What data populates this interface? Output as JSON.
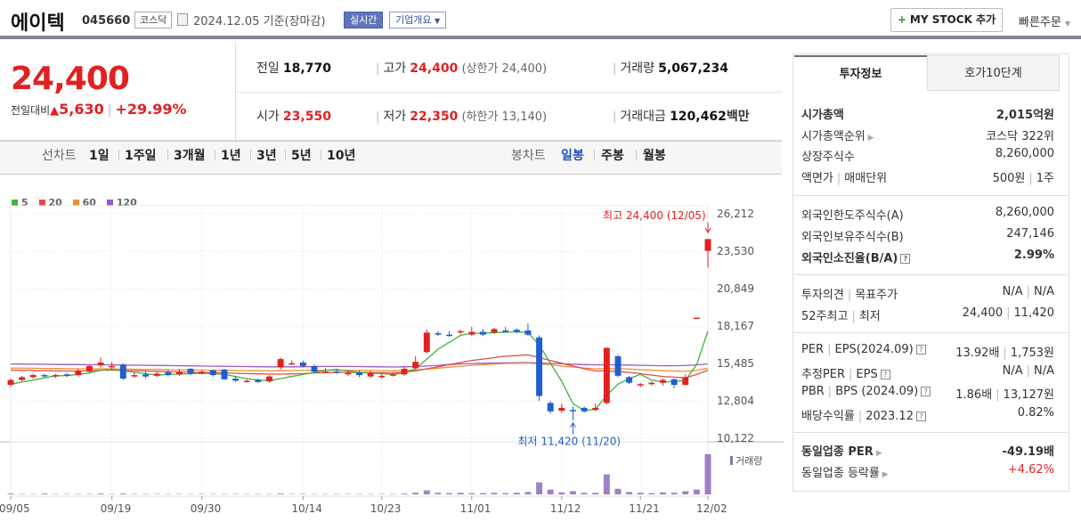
{
  "header": {
    "company": "에이텍",
    "code": "045660",
    "market": "코스닥",
    "date": "2024.12.05",
    "basis": "기준(장마감)",
    "realtime": "실시간",
    "overview": "기업개요",
    "overview_caret": "▼",
    "mystock": "MY STOCK 추가",
    "mystock_plus": "+",
    "quick_order": "빠른주문",
    "quick_caret": "▼"
  },
  "price": {
    "current": "24,400",
    "change_label": "전일대비",
    "change_arrow": "▲",
    "change": "5,630",
    "change_pct": "+29.99%"
  },
  "stats": {
    "prev_label": "전일",
    "prev": "18,770",
    "high_label": "고가",
    "high": "24,400",
    "high_limit": "(상한가 24,400)",
    "volume_label": "거래량",
    "volume": "5,067,234",
    "open_label": "시가",
    "open": "23,550",
    "low_label": "저가",
    "low": "22,350",
    "low_limit": "(하한가 13,140)",
    "amount_label": "거래대금",
    "amount": "120,462",
    "amount_unit": "백만"
  },
  "chart_tabs": {
    "line_label": "선차트",
    "line_items": [
      "1일",
      "1주일",
      "3개월",
      "1년",
      "3년",
      "5년",
      "10년"
    ],
    "candle_label": "봉차트",
    "candle_items": [
      "일봉",
      "주봉",
      "월봉"
    ],
    "candle_selected": "일봉"
  },
  "right_panel": {
    "tab_invest": "투자정보",
    "tab_hoga": "호가10단계",
    "market_cap_label": "시가총액",
    "market_cap": "2,015억원",
    "cap_rank_label": "시가총액순위",
    "cap_rank": "코스닥 322위",
    "shares_label": "상장주식수",
    "shares": "8,260,000",
    "par_label": "액면가",
    "unit_label": "매매단위",
    "par": "500원",
    "unit": "1주",
    "foreign_limit_label": "외국인한도주식수(A)",
    "foreign_limit": "8,260,000",
    "foreign_hold_label": "외국인보유주식수(B)",
    "foreign_hold": "247,146",
    "foreign_ratio_label": "외국인소진율(B/A)",
    "foreign_ratio": "2.99%",
    "opinion_label": "투자의견",
    "target_label": "목표주가",
    "opinion": "N/A",
    "target": "N/A",
    "w52_high_label": "52주최고",
    "w52_low_label": "최저",
    "w52_high": "24,400",
    "w52_low": "11,420",
    "per_label": "PER",
    "eps_label": "EPS(2024.09)",
    "per": "13.92배",
    "eps": "1,753원",
    "est_per_label": "추정PER",
    "est_eps_label": "EPS",
    "est_per": "N/A",
    "est_eps": "N/A",
    "pbr_label": "PBR",
    "bps_label": "BPS (2024.09)",
    "pbr": "1.86배",
    "bps": "13,127원",
    "div_label": "배당수익률",
    "div_period": "2023.12",
    "div": "0.82%",
    "sector_per_label": "동일업종 PER",
    "sector_per": "-49.19배",
    "sector_chg_label": "동일업종 등락률",
    "sector_chg": "+4.62%"
  },
  "colors": {
    "up": "#e12121",
    "down": "#1f5fd1",
    "accent": "#6175b8",
    "ma5": "#3fb33f",
    "ma20": "#e14b4b",
    "ma60": "#f0902d",
    "ma120": "#9b59c9"
  },
  "chart_data": {
    "type": "candlestick",
    "legend": [
      "5",
      "20",
      "60",
      "120"
    ],
    "ylim": [
      10122,
      26212
    ],
    "y_ticks": [
      "26,212",
      "23,530",
      "20,849",
      "18,167",
      "15,485",
      "12,804",
      "10,122"
    ],
    "x_ticks": [
      "09/05",
      "09/19",
      "09/30",
      "10/14",
      "10/23",
      "11/01",
      "11/12",
      "11/21",
      "12/02"
    ],
    "high_annotation": "최고 24,400 (12/05)",
    "low_annotation": "최저 11,420 (11/20)",
    "volume_label": "거래량",
    "candles": [
      {
        "o": 13950,
        "c": 14300,
        "h": 14400,
        "l": 13850
      },
      {
        "o": 14300,
        "c": 14500,
        "h": 14600,
        "l": 14200
      },
      {
        "o": 14500,
        "c": 14650,
        "h": 14750,
        "l": 14400
      },
      {
        "o": 14650,
        "c": 14600,
        "h": 14750,
        "l": 14500
      },
      {
        "o": 14550,
        "c": 14650,
        "h": 14750,
        "l": 14450
      },
      {
        "o": 14700,
        "c": 14600,
        "h": 14800,
        "l": 14500
      },
      {
        "o": 14650,
        "c": 14950,
        "h": 15100,
        "l": 14550
      },
      {
        "o": 14900,
        "c": 15300,
        "h": 15400,
        "l": 14800
      },
      {
        "o": 15350,
        "c": 15550,
        "h": 15900,
        "l": 15200
      },
      {
        "o": 15300,
        "c": 15300,
        "h": 15600,
        "l": 15050
      },
      {
        "o": 15400,
        "c": 14400,
        "h": 15500,
        "l": 14300
      },
      {
        "o": 14550,
        "c": 14650,
        "h": 14850,
        "l": 14450
      },
      {
        "o": 14700,
        "c": 14550,
        "h": 14900,
        "l": 14450
      },
      {
        "o": 14600,
        "c": 14750,
        "h": 14900,
        "l": 14500
      },
      {
        "o": 14850,
        "c": 14650,
        "h": 15000,
        "l": 14550
      },
      {
        "o": 14700,
        "c": 14900,
        "h": 15100,
        "l": 14600
      },
      {
        "o": 15100,
        "c": 14750,
        "h": 15150,
        "l": 14650
      },
      {
        "o": 14750,
        "c": 14900,
        "h": 15000,
        "l": 14700
      },
      {
        "o": 15000,
        "c": 14650,
        "h": 15000,
        "l": 14550
      },
      {
        "o": 15050,
        "c": 14350,
        "h": 15100,
        "l": 14300
      },
      {
        "o": 14400,
        "c": 14250,
        "h": 14600,
        "l": 14150
      },
      {
        "o": 14250,
        "c": 14250,
        "h": 14350,
        "l": 14100
      },
      {
        "o": 14300,
        "c": 14150,
        "h": 14400,
        "l": 14100
      },
      {
        "o": 14200,
        "c": 14550,
        "h": 14650,
        "l": 14100
      },
      {
        "o": 15200,
        "c": 15800,
        "h": 15900,
        "l": 15050
      },
      {
        "o": 15450,
        "c": 15500,
        "h": 15700,
        "l": 15400
      },
      {
        "o": 15550,
        "c": 15300,
        "h": 15700,
        "l": 15200
      },
      {
        "o": 15300,
        "c": 14900,
        "h": 15400,
        "l": 14800
      },
      {
        "o": 14900,
        "c": 14900,
        "h": 15150,
        "l": 14800
      },
      {
        "o": 14900,
        "c": 14800,
        "h": 15100,
        "l": 14750
      },
      {
        "o": 14750,
        "c": 14800,
        "h": 14950,
        "l": 14600
      },
      {
        "o": 14850,
        "c": 14650,
        "h": 14950,
        "l": 14500
      },
      {
        "o": 14550,
        "c": 14800,
        "h": 14950,
        "l": 14450
      },
      {
        "o": 14500,
        "c": 14600,
        "h": 14750,
        "l": 14400
      },
      {
        "o": 14650,
        "c": 14700,
        "h": 14800,
        "l": 14550
      },
      {
        "o": 14700,
        "c": 15100,
        "h": 15250,
        "l": 14600
      },
      {
        "o": 15150,
        "c": 15600,
        "h": 16000,
        "l": 15100
      },
      {
        "o": 16300,
        "c": 17700,
        "h": 17900,
        "l": 16200
      },
      {
        "o": 17650,
        "c": 17550,
        "h": 17800,
        "l": 17450
      },
      {
        "o": 17550,
        "c": 17500,
        "h": 17800,
        "l": 17400
      },
      {
        "o": 17700,
        "c": 17800,
        "h": 17900,
        "l": 17600
      },
      {
        "o": 17550,
        "c": 17750,
        "h": 18100,
        "l": 17450
      },
      {
        "o": 17750,
        "c": 17550,
        "h": 17950,
        "l": 17450
      },
      {
        "o": 17700,
        "c": 17950,
        "h": 18050,
        "l": 17600
      },
      {
        "o": 17850,
        "c": 17800,
        "h": 18100,
        "l": 17700
      },
      {
        "o": 17900,
        "c": 17750,
        "h": 18000,
        "l": 17650
      },
      {
        "o": 17850,
        "c": 17550,
        "h": 18350,
        "l": 17450
      },
      {
        "o": 17350,
        "c": 13150,
        "h": 17500,
        "l": 12800
      },
      {
        "o": 12650,
        "c": 12050,
        "h": 12800,
        "l": 11900
      },
      {
        "o": 12100,
        "c": 12300,
        "h": 12600,
        "l": 11950
      },
      {
        "o": 12150,
        "c": 12100,
        "h": 12400,
        "l": 11420
      },
      {
        "o": 12300,
        "c": 12050,
        "h": 12400,
        "l": 11950
      },
      {
        "o": 12150,
        "c": 12300,
        "h": 12600,
        "l": 12050
      },
      {
        "o": 12650,
        "c": 16600,
        "h": 16650,
        "l": 12550
      },
      {
        "o": 16000,
        "c": 14600,
        "h": 16100,
        "l": 14500
      },
      {
        "o": 14500,
        "c": 14100,
        "h": 14600,
        "l": 14000
      },
      {
        "o": 14000,
        "c": 14000,
        "h": 14100,
        "l": 13800
      },
      {
        "o": 14000,
        "c": 14100,
        "h": 14200,
        "l": 13900
      },
      {
        "o": 14100,
        "c": 14300,
        "h": 14400,
        "l": 13900
      },
      {
        "o": 14350,
        "c": 13950,
        "h": 14400,
        "l": 13700
      },
      {
        "o": 13950,
        "c": 14500,
        "h": 14700,
        "l": 13900
      },
      {
        "o": 18770,
        "c": 18770,
        "h": 18770,
        "l": 18770
      },
      {
        "o": 23550,
        "c": 24400,
        "h": 24400,
        "l": 22350
      }
    ],
    "volumes": [
      2,
      1,
      1,
      2,
      1,
      1,
      1,
      1,
      2,
      1,
      2,
      1,
      1,
      1,
      1,
      1,
      1,
      1,
      1,
      1,
      1,
      1,
      1,
      1,
      2,
      1,
      1,
      1,
      1,
      1,
      1,
      1,
      1,
      1,
      1,
      2,
      4,
      10,
      4,
      3,
      4,
      3,
      3,
      4,
      3,
      4,
      6,
      30,
      12,
      5,
      8,
      4,
      4,
      50,
      14,
      6,
      4,
      3,
      5,
      4,
      8,
      12,
      100
    ],
    "ma5": [
      14000,
      14150,
      14300,
      14450,
      14600,
      14620,
      14700,
      14800,
      15000,
      15050,
      14950,
      14850,
      14750,
      14650,
      14700,
      14720,
      14750,
      14780,
      14750,
      14700,
      14550,
      14400,
      14300,
      14250,
      14400,
      14550,
      14700,
      14850,
      15000,
      15050,
      14950,
      14850,
      14780,
      14750,
      14700,
      14800,
      15100,
      15800,
      16500,
      17000,
      17500,
      17650,
      17650,
      17700,
      17720,
      17750,
      17700,
      16800,
      15500,
      14200,
      12600,
      12100,
      12200,
      13200,
      14000,
      14400,
      14700,
      14300,
      14150,
      14200,
      14250,
      15400,
      17800
    ],
    "ma20": [
      15000,
      15000,
      14980,
      14960,
      14950,
      14940,
      14950,
      14960,
      15000,
      15000,
      14980,
      14960,
      14940,
      14920,
      14900,
      14880,
      14860,
      14840,
      14820,
      14800,
      14780,
      14760,
      14740,
      14720,
      14720,
      14740,
      14760,
      14800,
      14830,
      14850,
      14850,
      14840,
      14830,
      14820,
      14810,
      14860,
      14950,
      15100,
      15250,
      15400,
      15550,
      15700,
      15800,
      15900,
      16000,
      16050,
      16100,
      15900,
      15700,
      15500,
      15300,
      15100,
      14950,
      14950,
      14900,
      14850,
      14750,
      14650,
      14550,
      14500,
      14450,
      14700,
      15000
    ],
    "ma60": [
      15150,
      15150,
      15140,
      15130,
      15120,
      15110,
      15100,
      15100,
      15100,
      15090,
      15080,
      15070,
      15060,
      15050,
      15040,
      15030,
      15020,
      15010,
      15000,
      14990,
      14980,
      14970,
      14960,
      14950,
      14960,
      14970,
      14980,
      14990,
      15000,
      15000,
      15000,
      14990,
      14980,
      14970,
      14960,
      14980,
      15020,
      15080,
      15150,
      15220,
      15290,
      15350,
      15400,
      15450,
      15480,
      15500,
      15520,
      15450,
      15380,
      15300,
      15230,
      15160,
      15100,
      15120,
      15100,
      15080,
      15040,
      15000,
      14960,
      14940,
      14920,
      15000,
      15150
    ],
    "ma120": [
      15450,
      15440,
      15430,
      15420,
      15410,
      15400,
      15400,
      15390,
      15390,
      15380,
      15370,
      15360,
      15350,
      15340,
      15330,
      15320,
      15310,
      15300,
      15290,
      15280,
      15270,
      15260,
      15250,
      15240,
      15240,
      15240,
      15250,
      15260,
      15270,
      15270,
      15270,
      15260,
      15250,
      15240,
      15230,
      15240,
      15260,
      15300,
      15350,
      15400,
      15450,
      15480,
      15500,
      15520,
      15530,
      15540,
      15550,
      15520,
      15490,
      15460,
      15430,
      15400,
      15380,
      15390,
      15380,
      15370,
      15350,
      15330,
      15320,
      15320,
      15330,
      15380,
      15450
    ]
  }
}
